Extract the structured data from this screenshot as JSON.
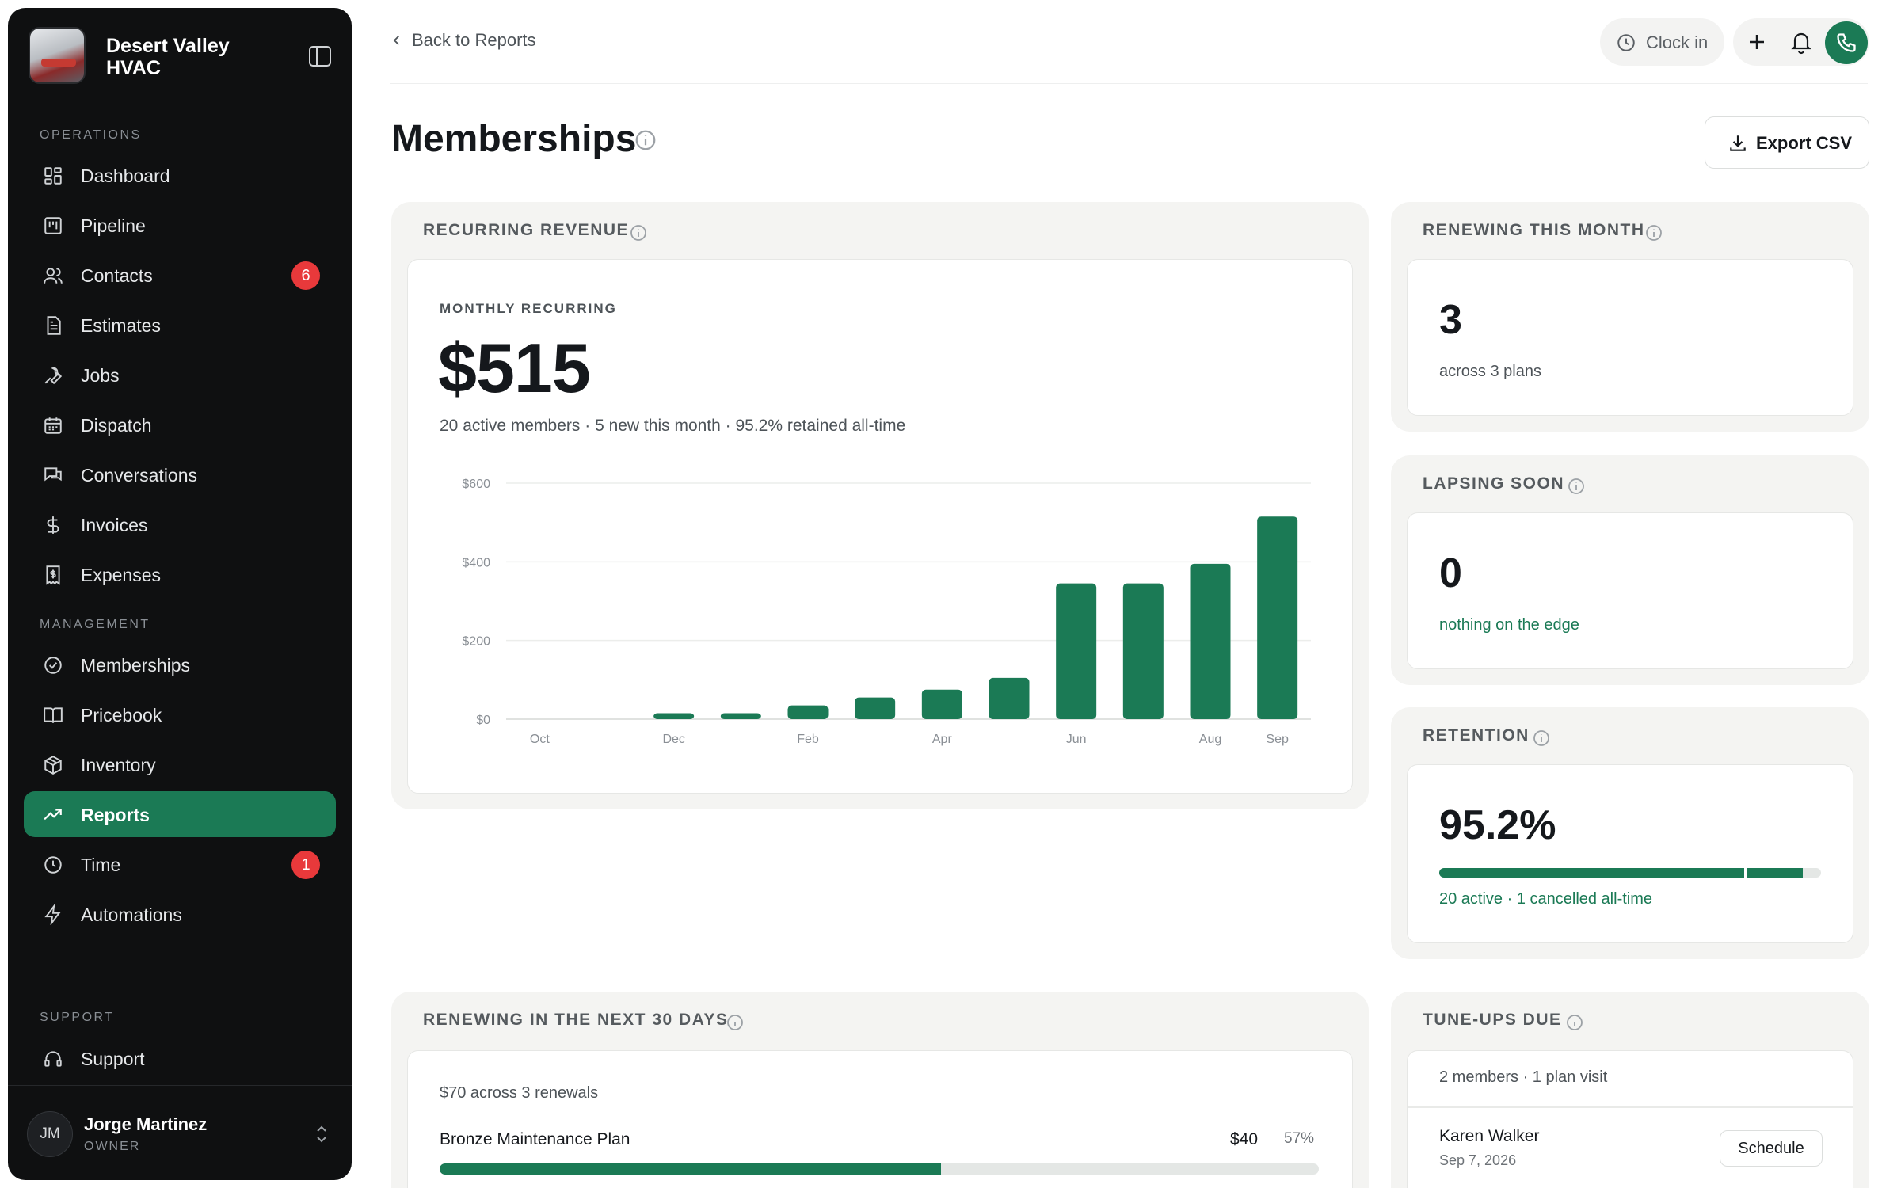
{
  "brand": {
    "name": "Desert Valley HVAC"
  },
  "sidebar": {
    "sections": [
      {
        "label": "OPERATIONS"
      },
      {
        "label": "MANAGEMENT"
      },
      {
        "label": "SUPPORT"
      }
    ],
    "items": [
      {
        "label": "Dashboard",
        "icon": "dashboard-icon"
      },
      {
        "label": "Pipeline",
        "icon": "pipeline-icon"
      },
      {
        "label": "Contacts",
        "icon": "contacts-icon",
        "badge": "6"
      },
      {
        "label": "Estimates",
        "icon": "estimates-icon"
      },
      {
        "label": "Jobs",
        "icon": "wrench-icon"
      },
      {
        "label": "Dispatch",
        "icon": "calendar-icon"
      },
      {
        "label": "Conversations",
        "icon": "chat-icon"
      },
      {
        "label": "Invoices",
        "icon": "dollar-icon"
      },
      {
        "label": "Expenses",
        "icon": "receipt-icon"
      },
      {
        "label": "Memberships",
        "icon": "badge-check-icon"
      },
      {
        "label": "Pricebook",
        "icon": "book-icon"
      },
      {
        "label": "Inventory",
        "icon": "package-icon"
      },
      {
        "label": "Reports",
        "icon": "trend-icon",
        "active": true
      },
      {
        "label": "Time",
        "icon": "clock-icon",
        "badge": "1"
      },
      {
        "label": "Automations",
        "icon": "bolt-icon"
      },
      {
        "label": "Support",
        "icon": "headset-icon"
      }
    ],
    "user": {
      "initials": "JM",
      "name": "Jorge Martinez",
      "role": "OWNER"
    }
  },
  "topbar": {
    "back_label": "Back to Reports",
    "clock_in_label": "Clock in"
  },
  "page": {
    "title": "Memberships",
    "export_label": "Export CSV"
  },
  "recurring": {
    "title": "RECURRING REVENUE",
    "monthly_label": "MONTHLY RECURRING",
    "value": "$515",
    "subtitle": "20 active members · 5 new this month · 95.2% retained all-time"
  },
  "chart_data": {
    "type": "bar",
    "categories": [
      "Oct",
      "Nov",
      "Dec",
      "Jan",
      "Feb",
      "Mar",
      "Apr",
      "May",
      "Jun",
      "Jul",
      "Aug",
      "Sep"
    ],
    "tick_labels_shown": [
      "Oct",
      "Dec",
      "Feb",
      "Apr",
      "Jun",
      "Aug",
      "Sep"
    ],
    "values": [
      0,
      0,
      15,
      15,
      35,
      55,
      75,
      105,
      345,
      345,
      395,
      515
    ],
    "ylim": [
      0,
      600
    ],
    "y_ticks": [
      "$0",
      "$200",
      "$400",
      "$600"
    ],
    "grid": true,
    "color": "#1b7a55"
  },
  "renewing_month": {
    "title": "RENEWING THIS MONTH",
    "value": "3",
    "sub": "across 3 plans"
  },
  "lapsing": {
    "title": "LAPSING SOON",
    "value": "0",
    "sub": "nothing on the edge"
  },
  "retention": {
    "title": "RETENTION",
    "value": "95.2%",
    "fraction": 0.952,
    "sub": "20 active · 1 cancelled all-time"
  },
  "renewing30": {
    "title": "RENEWING IN THE NEXT 30 DAYS",
    "sub": "$70 across 3 renewals",
    "rows": [
      {
        "name": "Bronze Maintenance Plan",
        "amount": "$40",
        "pct": "57%",
        "fraction": 0.57
      }
    ]
  },
  "tuneups": {
    "title": "TUNE-UPS DUE",
    "sub": "2 members · 1 plan visit",
    "rows": [
      {
        "name": "Karen Walker",
        "date": "Sep 7, 2026",
        "action": "Schedule"
      }
    ]
  }
}
